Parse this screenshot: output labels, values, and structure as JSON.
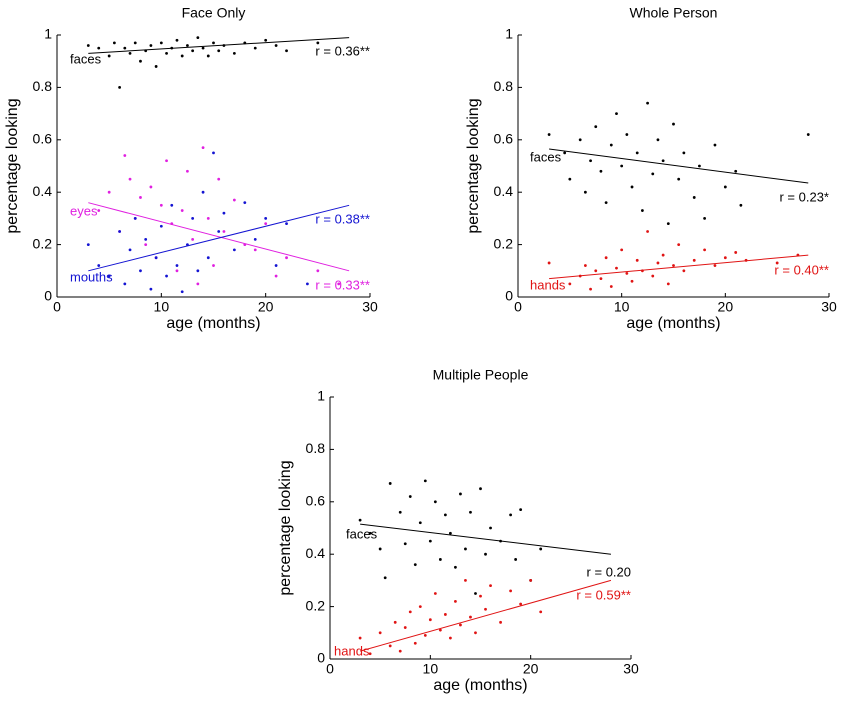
{
  "chart_data": [
    {
      "type": "scatter",
      "title": "Face Only",
      "xlabel": "age (months)",
      "ylabel": "percentage looking",
      "xlim": [
        0,
        30
      ],
      "ylim": [
        0,
        1
      ],
      "xticks": [
        0,
        10,
        20,
        30
      ],
      "yticks": [
        0,
        0.2,
        0.4,
        0.6,
        0.8,
        1
      ],
      "series": [
        {
          "name": "faces",
          "color": "#000000",
          "r_label": "r = 0.36**",
          "x": [
            3,
            4,
            5,
            5.5,
            6,
            6.5,
            7,
            7.5,
            8,
            8.5,
            9,
            9.5,
            10,
            10.5,
            11,
            11.5,
            12,
            12.5,
            13,
            13.5,
            14,
            14.5,
            15,
            15.5,
            16,
            17,
            18,
            19,
            20,
            21,
            22,
            25
          ],
          "values": [
            0.96,
            0.95,
            0.92,
            0.97,
            0.8,
            0.95,
            0.93,
            0.97,
            0.9,
            0.94,
            0.96,
            0.88,
            0.97,
            0.93,
            0.95,
            0.98,
            0.92,
            0.96,
            0.94,
            0.99,
            0.95,
            0.92,
            0.97,
            0.94,
            0.96,
            0.93,
            0.97,
            0.95,
            0.98,
            0.96,
            0.94,
            0.97
          ],
          "fit": {
            "x": [
              3,
              28
            ],
            "y": [
              0.93,
              0.99
            ]
          }
        },
        {
          "name": "eyes",
          "color": "#e020e0",
          "r_label": "r = 0.33**",
          "x": [
            4,
            5,
            6,
            6.5,
            7,
            7.5,
            8,
            8.5,
            9,
            9.5,
            10,
            10.5,
            11,
            11.5,
            12,
            12.5,
            13,
            13.5,
            14,
            14.5,
            15,
            15.5,
            16,
            17,
            18,
            19,
            20,
            21,
            22,
            25,
            27
          ],
          "values": [
            0.33,
            0.4,
            0.25,
            0.54,
            0.45,
            0.3,
            0.38,
            0.2,
            0.42,
            0.15,
            0.35,
            0.52,
            0.28,
            0.1,
            0.33,
            0.48,
            0.22,
            0.05,
            0.57,
            0.3,
            0.12,
            0.45,
            0.25,
            0.37,
            0.2,
            0.18,
            0.28,
            0.08,
            0.15,
            0.1,
            0.05
          ],
          "fit": {
            "x": [
              3,
              28
            ],
            "y": [
              0.36,
              0.1
            ]
          }
        },
        {
          "name": "mouths",
          "color": "#1414d2",
          "r_label": "r = 0.38**",
          "x": [
            3,
            4,
            5,
            6,
            6.5,
            7,
            7.5,
            8,
            8.5,
            9,
            9.5,
            10,
            10.5,
            11,
            11.5,
            12,
            12.5,
            13,
            13.5,
            14,
            14.5,
            15,
            15.5,
            16,
            17,
            18,
            19,
            20,
            21,
            22,
            24
          ],
          "values": [
            0.2,
            0.12,
            0.08,
            0.25,
            0.05,
            0.18,
            0.3,
            0.1,
            0.22,
            0.03,
            0.15,
            0.27,
            0.08,
            0.35,
            0.12,
            0.02,
            0.2,
            0.3,
            0.1,
            0.4,
            0.15,
            0.55,
            0.25,
            0.32,
            0.18,
            0.36,
            0.22,
            0.3,
            0.12,
            0.28,
            0.05
          ],
          "fit": {
            "x": [
              3,
              28
            ],
            "y": [
              0.1,
              0.35
            ]
          }
        }
      ]
    },
    {
      "type": "scatter",
      "title": "Whole Person",
      "xlabel": "age (months)",
      "ylabel": "percentage looking",
      "xlim": [
        0,
        30
      ],
      "ylim": [
        0,
        1
      ],
      "xticks": [
        0,
        10,
        20,
        30
      ],
      "yticks": [
        0,
        0.2,
        0.4,
        0.6,
        0.8,
        1
      ],
      "series": [
        {
          "name": "faces",
          "color": "#000000",
          "r_label": "r = 0.23*",
          "x": [
            3,
            4.5,
            5,
            6,
            6.5,
            7,
            7.5,
            8,
            8.5,
            9,
            9.5,
            10,
            10.5,
            11,
            11.5,
            12,
            12.5,
            13,
            13.5,
            14,
            14.5,
            15,
            15.5,
            16,
            17,
            17.5,
            18,
            19,
            20,
            21,
            21.5,
            28
          ],
          "values": [
            0.62,
            0.55,
            0.45,
            0.6,
            0.4,
            0.52,
            0.65,
            0.48,
            0.36,
            0.58,
            0.7,
            0.5,
            0.62,
            0.42,
            0.55,
            0.33,
            0.74,
            0.47,
            0.6,
            0.52,
            0.28,
            0.66,
            0.45,
            0.55,
            0.38,
            0.5,
            0.3,
            0.58,
            0.42,
            0.48,
            0.35,
            0.62
          ],
          "fit": {
            "x": [
              3,
              28
            ],
            "y": [
              0.565,
              0.435
            ]
          }
        },
        {
          "name": "hands",
          "color": "#e01414",
          "r_label": "r = 0.40**",
          "x": [
            3,
            5,
            6,
            6.5,
            7,
            7.5,
            8,
            8.5,
            9,
            9.5,
            10,
            10.5,
            11,
            11.5,
            12,
            12.5,
            13,
            13.5,
            14,
            14.5,
            15,
            15.5,
            16,
            17,
            18,
            19,
            20,
            21,
            22,
            25,
            27
          ],
          "values": [
            0.13,
            0.05,
            0.08,
            0.12,
            0.03,
            0.1,
            0.07,
            0.15,
            0.04,
            0.11,
            0.18,
            0.09,
            0.06,
            0.14,
            0.1,
            0.25,
            0.08,
            0.13,
            0.16,
            0.05,
            0.12,
            0.2,
            0.1,
            0.14,
            0.18,
            0.12,
            0.15,
            0.17,
            0.14,
            0.13,
            0.16
          ],
          "fit": {
            "x": [
              3,
              28
            ],
            "y": [
              0.07,
              0.16
            ]
          }
        }
      ]
    },
    {
      "type": "scatter",
      "title": "Multiple People",
      "xlabel": "age (months)",
      "ylabel": "percentage looking",
      "xlim": [
        0,
        30
      ],
      "ylim": [
        0,
        1
      ],
      "xticks": [
        0,
        10,
        20,
        30
      ],
      "yticks": [
        0,
        0.2,
        0.4,
        0.6,
        0.8,
        1
      ],
      "series": [
        {
          "name": "faces",
          "color": "#000000",
          "r_label": "r = 0.20",
          "x": [
            3,
            4,
            5,
            5.5,
            6,
            7,
            7.5,
            8,
            8.5,
            9,
            9.5,
            10,
            10.5,
            11,
            11.5,
            12,
            12.5,
            13,
            13.5,
            14,
            14.5,
            15,
            15.5,
            16,
            17,
            18,
            18.5,
            19,
            20,
            21
          ],
          "values": [
            0.53,
            0.48,
            0.42,
            0.31,
            0.67,
            0.56,
            0.44,
            0.62,
            0.36,
            0.52,
            0.68,
            0.45,
            0.6,
            0.38,
            0.55,
            0.48,
            0.35,
            0.63,
            0.42,
            0.56,
            0.25,
            0.65,
            0.4,
            0.5,
            0.45,
            0.55,
            0.38,
            0.57,
            0.3,
            0.42
          ],
          "fit": {
            "x": [
              3,
              28
            ],
            "y": [
              0.515,
              0.4
            ]
          }
        },
        {
          "name": "hands",
          "color": "#e01414",
          "r_label": "r = 0.59**",
          "x": [
            3,
            4,
            5,
            6,
            6.5,
            7,
            7.5,
            8,
            8.5,
            9,
            9.5,
            10,
            10.5,
            11,
            11.5,
            12,
            12.5,
            13,
            13.5,
            14,
            14.5,
            15,
            15.5,
            16,
            17,
            18,
            19,
            20,
            21
          ],
          "values": [
            0.08,
            0.02,
            0.1,
            0.05,
            0.14,
            0.03,
            0.12,
            0.18,
            0.06,
            0.2,
            0.09,
            0.15,
            0.25,
            0.11,
            0.17,
            0.08,
            0.22,
            0.13,
            0.3,
            0.16,
            0.1,
            0.24,
            0.19,
            0.28,
            0.14,
            0.26,
            0.21,
            0.3,
            0.18
          ],
          "fit": {
            "x": [
              3,
              28
            ],
            "y": [
              0.03,
              0.3
            ]
          }
        }
      ]
    }
  ]
}
